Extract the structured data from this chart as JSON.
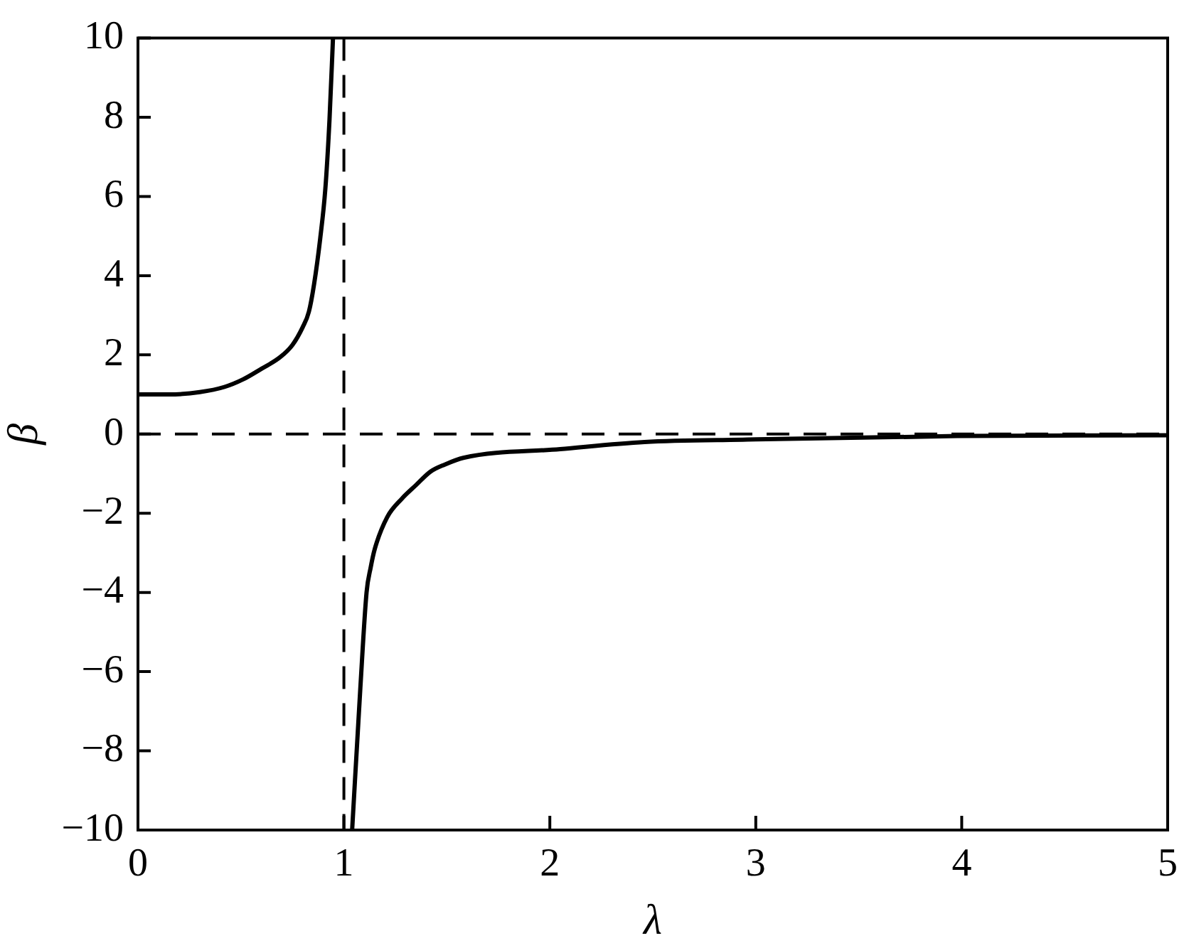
{
  "chart_data": {
    "type": "line",
    "xlabel": "λ",
    "ylabel": "β",
    "series": [
      {
        "color": "#000000",
        "x": [
          0,
          0.15,
          0.3,
          0.42,
          0.51,
          0.6,
          0.69,
          0.75,
          0.8,
          0.83,
          0.855,
          0.885,
          0.91,
          0.93,
          0.947,
          1,
          1.04,
          1.08,
          1.11,
          1.13,
          1.15,
          1.21,
          1.28,
          1.35,
          1.42,
          1.49,
          1.58,
          2.05,
          2.46,
          2.96,
          3.98,
          5
        ],
        "values": [
          1.0,
          1.0,
          1.06,
          1.19,
          1.38,
          1.65,
          1.94,
          2.25,
          2.7,
          3.09,
          3.78,
          4.94,
          6.2,
          7.93,
          10,
          null,
          -10,
          -6.4,
          -4.0,
          -3.37,
          -2.9,
          -2.1,
          -1.64,
          -1.29,
          -0.95,
          -0.77,
          -0.6,
          -0.38,
          -0.2,
          -0.14,
          -0.05,
          -0.03
        ]
      }
    ],
    "xlim": [
      0,
      5
    ],
    "xticks": [
      0,
      1,
      2,
      3,
      4,
      5
    ],
    "ylim": [
      -10,
      10
    ],
    "yticks": [
      {
        "value": -10,
        "label": "−10"
      },
      {
        "value": -8,
        "label": "−8"
      },
      {
        "value": -6,
        "label": "−6"
      },
      {
        "value": -4,
        "label": "−4"
      },
      {
        "value": -2,
        "label": "−2"
      },
      0,
      2,
      4,
      6,
      8,
      10
    ],
    "ref_lines": [
      {
        "axis": "x",
        "value": 1,
        "line_style": "dashed",
        "color": "#000000"
      },
      {
        "axis": "y",
        "value": 0,
        "line_style": "dashed",
        "color": "#000000"
      }
    ],
    "grid": false,
    "legend": false,
    "marker": "none",
    "line_style": "solid"
  }
}
